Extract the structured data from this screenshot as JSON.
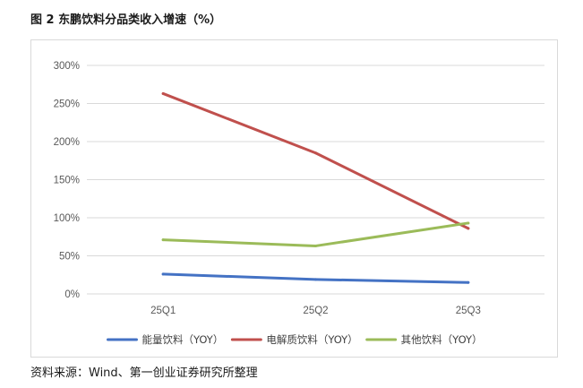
{
  "figure": {
    "title": "图 2 东鹏饮料分品类收入增速（%）",
    "source": "资料来源：Wind、第一创业证券研究所整理"
  },
  "chart_data": {
    "type": "line",
    "title": "",
    "xlabel": "",
    "ylabel": "",
    "categories": [
      "25Q1",
      "25Q2",
      "25Q3"
    ],
    "ylim": [
      0,
      300
    ],
    "yticks": [
      "0%",
      "50%",
      "100%",
      "150%",
      "200%",
      "250%",
      "300%"
    ],
    "grid": true,
    "legend_position": "bottom",
    "series": [
      {
        "name": "能量饮料（YOY）",
        "color": "#4472C4",
        "values": [
          26,
          19,
          15
        ]
      },
      {
        "name": "电解质饮料（YOY）",
        "color": "#C0504D",
        "values": [
          263,
          185,
          86
        ]
      },
      {
        "name": "其他饮料（YOY）",
        "color": "#9BBB59",
        "values": [
          71,
          63,
          93
        ]
      }
    ]
  }
}
